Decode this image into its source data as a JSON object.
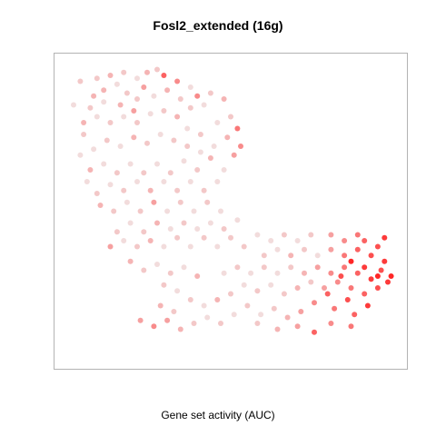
{
  "chart_data": {
    "type": "scatter",
    "title": "Fosl2_extended (16g)",
    "xlabel": "Gene set activity (AUC)",
    "ylabel": "",
    "axes_visible": false,
    "grid": false,
    "legend": "none",
    "xlim": [
      0,
      100
    ],
    "ylim": [
      0,
      100
    ],
    "color_scale": {
      "low": "#eeeeee",
      "high": "#ff0000",
      "value_range": [
        0,
        1
      ]
    },
    "point_color_encoding": "gene set activity (AUC), scaled 0-1",
    "points": [
      [
        10,
        95,
        0.2
      ],
      [
        14,
        96,
        0.3
      ],
      [
        18,
        97,
        0.2
      ],
      [
        22,
        95,
        0.1
      ],
      [
        25,
        97,
        0.3
      ],
      [
        28,
        98,
        0.2
      ],
      [
        24,
        92,
        0.4
      ],
      [
        19,
        90,
        0.2
      ],
      [
        16,
        93,
        0.1
      ],
      [
        12,
        91,
        0.3
      ],
      [
        30,
        96,
        0.7
      ],
      [
        34,
        94,
        0.5
      ],
      [
        38,
        92,
        0.1
      ],
      [
        35,
        88,
        0.2
      ],
      [
        31,
        91,
        0.3
      ],
      [
        27,
        89,
        0.1
      ],
      [
        22,
        88,
        0.2
      ],
      [
        17,
        86,
        0.3
      ],
      [
        12,
        87,
        0.1
      ],
      [
        8,
        85,
        0.2
      ],
      [
        6,
        80,
        0.3
      ],
      [
        10,
        82,
        0.1
      ],
      [
        14,
        80,
        0.2
      ],
      [
        18,
        82,
        0.1
      ],
      [
        22,
        80,
        0.2
      ],
      [
        26,
        83,
        0.1
      ],
      [
        30,
        84,
        0.2
      ],
      [
        34,
        82,
        0.3
      ],
      [
        38,
        85,
        0.2
      ],
      [
        42,
        86,
        0.1
      ],
      [
        44,
        90,
        0.2
      ],
      [
        48,
        88,
        0.3
      ],
      [
        40,
        89,
        0.5
      ],
      [
        46,
        80,
        0.1
      ],
      [
        50,
        82,
        0.2
      ],
      [
        52,
        78,
        0.6
      ],
      [
        49,
        75,
        0.3
      ],
      [
        45,
        72,
        0.1
      ],
      [
        41,
        76,
        0.2
      ],
      [
        37,
        78,
        0.1
      ],
      [
        33,
        74,
        0.2
      ],
      [
        29,
        76,
        0.1
      ],
      [
        25,
        73,
        0.2
      ],
      [
        21,
        75,
        0.3
      ],
      [
        17,
        72,
        0.1
      ],
      [
        13,
        74,
        0.2
      ],
      [
        9,
        71,
        0.1
      ],
      [
        6,
        76,
        0.2
      ],
      [
        5,
        69,
        0.1
      ],
      [
        8,
        64,
        0.3
      ],
      [
        12,
        66,
        0.1
      ],
      [
        16,
        63,
        0.2
      ],
      [
        20,
        66,
        0.1
      ],
      [
        24,
        63,
        0.2
      ],
      [
        28,
        66,
        0.1
      ],
      [
        32,
        63,
        0.2
      ],
      [
        36,
        67,
        0.1
      ],
      [
        40,
        64,
        0.2
      ],
      [
        44,
        68,
        0.3
      ],
      [
        48,
        64,
        0.1
      ],
      [
        51,
        69,
        0.4
      ],
      [
        53,
        72,
        0.5
      ],
      [
        46,
        60,
        0.1
      ],
      [
        42,
        57,
        0.2
      ],
      [
        38,
        60,
        0.1
      ],
      [
        34,
        57,
        0.2
      ],
      [
        30,
        60,
        0.1
      ],
      [
        26,
        57,
        0.3
      ],
      [
        22,
        60,
        0.1
      ],
      [
        18,
        57,
        0.2
      ],
      [
        14,
        59,
        0.1
      ],
      [
        10,
        56,
        0.2
      ],
      [
        7,
        60,
        0.1
      ],
      [
        11,
        52,
        0.3
      ],
      [
        15,
        50,
        0.2
      ],
      [
        19,
        53,
        0.1
      ],
      [
        23,
        50,
        0.2
      ],
      [
        27,
        53,
        0.4
      ],
      [
        31,
        50,
        0.1
      ],
      [
        35,
        53,
        0.2
      ],
      [
        39,
        50,
        0.1
      ],
      [
        43,
        53,
        0.2
      ],
      [
        47,
        50,
        0.1
      ],
      [
        36,
        46,
        0.2
      ],
      [
        32,
        44,
        0.1
      ],
      [
        28,
        46,
        0.3
      ],
      [
        24,
        43,
        0.2
      ],
      [
        20,
        46,
        0.1
      ],
      [
        16,
        43,
        0.2
      ],
      [
        14,
        38,
        0.4
      ],
      [
        18,
        40,
        0.1
      ],
      [
        22,
        38,
        0.2
      ],
      [
        26,
        40,
        0.3
      ],
      [
        30,
        38,
        0.1
      ],
      [
        34,
        41,
        0.2
      ],
      [
        38,
        38,
        0.1
      ],
      [
        42,
        41,
        0.2
      ],
      [
        46,
        38,
        0.1
      ],
      [
        50,
        41,
        0.2
      ],
      [
        40,
        44,
        0.1
      ],
      [
        44,
        46,
        0.1
      ],
      [
        48,
        44,
        0.2
      ],
      [
        52,
        47,
        0.1
      ],
      [
        20,
        33,
        0.3
      ],
      [
        24,
        30,
        0.2
      ],
      [
        28,
        32,
        0.1
      ],
      [
        32,
        29,
        0.2
      ],
      [
        36,
        31,
        0.1
      ],
      [
        40,
        28,
        0.3
      ],
      [
        30,
        25,
        0.2
      ],
      [
        34,
        23,
        0.1
      ],
      [
        38,
        20,
        0.2
      ],
      [
        42,
        18,
        0.1
      ],
      [
        46,
        20,
        0.3
      ],
      [
        50,
        22,
        0.2
      ],
      [
        54,
        25,
        0.1
      ],
      [
        58,
        23,
        0.2
      ],
      [
        62,
        25,
        0.1
      ],
      [
        66,
        22,
        0.2
      ],
      [
        70,
        24,
        0.3
      ],
      [
        74,
        26,
        0.2
      ],
      [
        78,
        24,
        0.4
      ],
      [
        82,
        26,
        0.5
      ],
      [
        86,
        24,
        0.6
      ],
      [
        90,
        22,
        0.7
      ],
      [
        94,
        24,
        0.8
      ],
      [
        97,
        26,
        0.9
      ],
      [
        95,
        30,
        0.8
      ],
      [
        92,
        27,
        0.9
      ],
      [
        88,
        29,
        0.7
      ],
      [
        84,
        31,
        0.6
      ],
      [
        80,
        29,
        0.5
      ],
      [
        76,
        31,
        0.4
      ],
      [
        72,
        29,
        0.3
      ],
      [
        68,
        31,
        0.2
      ],
      [
        64,
        29,
        0.1
      ],
      [
        60,
        31,
        0.2
      ],
      [
        56,
        29,
        0.1
      ],
      [
        52,
        31,
        0.2
      ],
      [
        48,
        29,
        0.1
      ],
      [
        60,
        35,
        0.2
      ],
      [
        64,
        37,
        0.1
      ],
      [
        68,
        35,
        0.3
      ],
      [
        72,
        37,
        0.2
      ],
      [
        76,
        35,
        0.1
      ],
      [
        80,
        37,
        0.4
      ],
      [
        84,
        35,
        0.6
      ],
      [
        88,
        37,
        0.7
      ],
      [
        92,
        35,
        0.8
      ],
      [
        96,
        33,
        0.9
      ],
      [
        86,
        33,
        1.0
      ],
      [
        90,
        31,
        0.9
      ],
      [
        94,
        28,
        1.0
      ],
      [
        98,
        28,
        1.0
      ],
      [
        83,
        28,
        0.8
      ],
      [
        79,
        22,
        0.7
      ],
      [
        85,
        20,
        0.8
      ],
      [
        91,
        18,
        0.9
      ],
      [
        87,
        15,
        0.7
      ],
      [
        81,
        17,
        0.6
      ],
      [
        75,
        19,
        0.5
      ],
      [
        71,
        16,
        0.4
      ],
      [
        67,
        14,
        0.3
      ],
      [
        63,
        17,
        0.2
      ],
      [
        59,
        15,
        0.1
      ],
      [
        55,
        18,
        0.2
      ],
      [
        51,
        15,
        0.1
      ],
      [
        47,
        12,
        0.2
      ],
      [
        43,
        14,
        0.1
      ],
      [
        39,
        12,
        0.2
      ],
      [
        35,
        10,
        0.3
      ],
      [
        31,
        13,
        0.4
      ],
      [
        27,
        11,
        0.5
      ],
      [
        23,
        13,
        0.4
      ],
      [
        33,
        16,
        0.2
      ],
      [
        29,
        18,
        0.3
      ],
      [
        75,
        9,
        0.7
      ],
      [
        80,
        12,
        0.5
      ],
      [
        86,
        11,
        0.6
      ],
      [
        70,
        11,
        0.4
      ],
      [
        64,
        10,
        0.3
      ],
      [
        58,
        12,
        0.2
      ],
      [
        62,
        40,
        0.1
      ],
      [
        66,
        42,
        0.2
      ],
      [
        70,
        40,
        0.1
      ],
      [
        74,
        42,
        0.2
      ],
      [
        58,
        42,
        0.1
      ],
      [
        54,
        38,
        0.2
      ],
      [
        90,
        40,
        0.7
      ],
      [
        94,
        38,
        0.8
      ],
      [
        88,
        42,
        0.6
      ],
      [
        84,
        40,
        0.5
      ],
      [
        80,
        42,
        0.4
      ],
      [
        96,
        41,
        0.9
      ],
      [
        41,
        70,
        0.1
      ],
      [
        37,
        72,
        0.2
      ],
      [
        21,
        84,
        0.4
      ],
      [
        9,
        89,
        0.3
      ],
      [
        5,
        94,
        0.2
      ],
      [
        3,
        86,
        0.1
      ]
    ]
  }
}
